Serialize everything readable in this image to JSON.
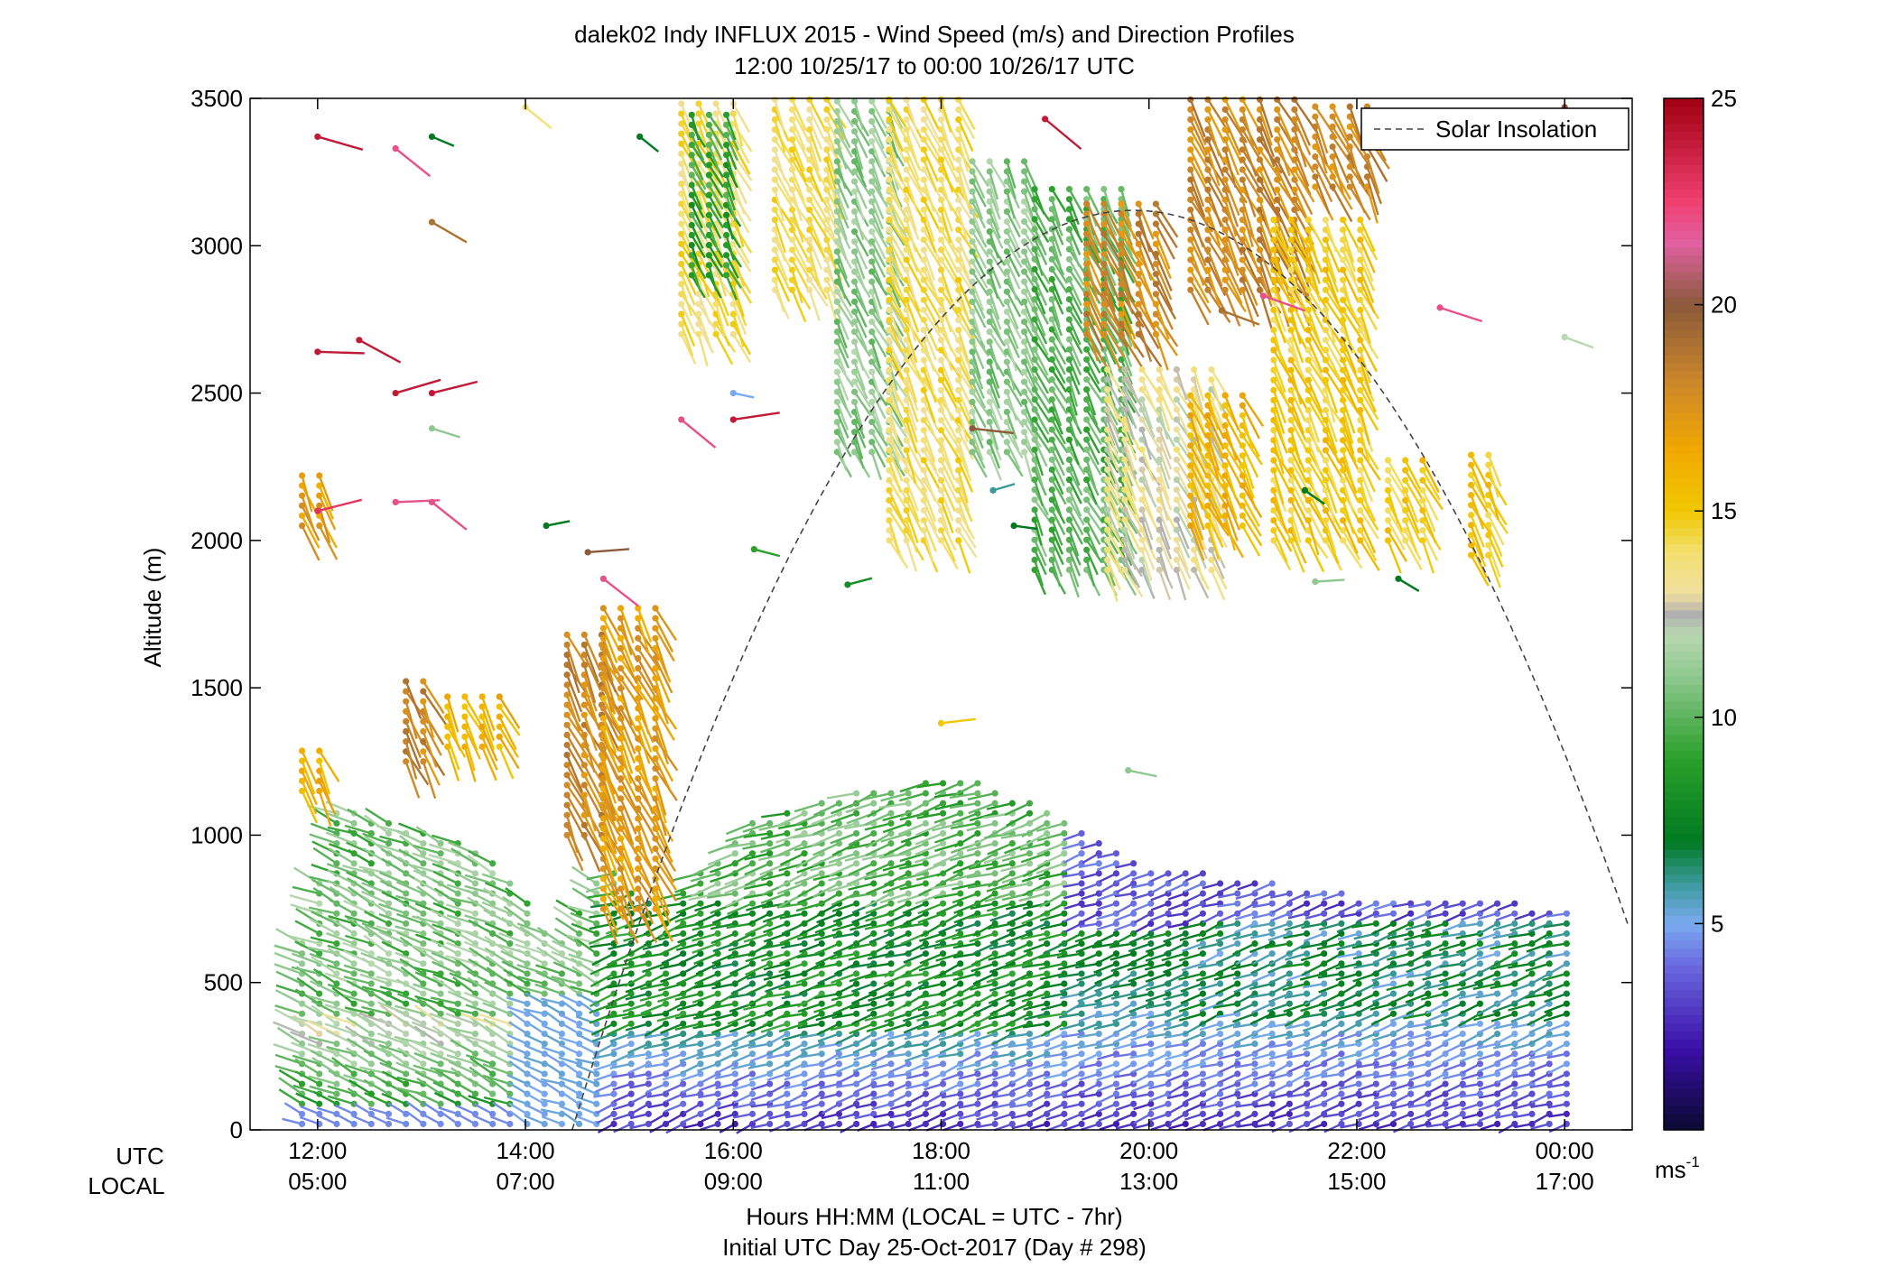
{
  "chart_data": {
    "type": "wind barb profile",
    "title": "dalek02 Indy INFLUX 2015 - Wind Speed (m/s) and Direction Profiles",
    "subtitle": "12:00 10/25/17 to 00:00 10/26/17  UTC",
    "ylabel": "Altitude (m)",
    "xlabel": "Hours HH:MM  (LOCAL = UTC - 7hr)",
    "xlabel2": "Initial UTC Day 25-Oct-2017 (Day # 298)",
    "row_label_utc": "UTC",
    "row_label_local": "LOCAL",
    "x_range_hours_utc": [
      11.35,
      24.65
    ],
    "ylim": [
      0,
      3500
    ],
    "y_ticks": [
      0,
      500,
      1000,
      1500,
      2000,
      2500,
      3000,
      3500
    ],
    "x_ticks": [
      {
        "h": 12,
        "utc": "12:00",
        "local": "05:00"
      },
      {
        "h": 14,
        "utc": "14:00",
        "local": "07:00"
      },
      {
        "h": 16,
        "utc": "16:00",
        "local": "09:00"
      },
      {
        "h": 18,
        "utc": "18:00",
        "local": "11:00"
      },
      {
        "h": 20,
        "utc": "20:00",
        "local": "13:00"
      },
      {
        "h": 22,
        "utc": "22:00",
        "local": "15:00"
      },
      {
        "h": 24,
        "utc": "00:00",
        "local": "17:00"
      }
    ],
    "legend": {
      "label": "Solar Insolation",
      "placement": "top-right",
      "style": "dashed gray"
    },
    "solar_insolation_curve": {
      "start_h": 14.45,
      "peak_h": 19.85,
      "peak_alt_m": 3120,
      "end_h": 24.62,
      "end_alt_m": 650
    },
    "colorbar": {
      "ticks": [
        5,
        10,
        15,
        20,
        25
      ],
      "range": [
        0,
        25
      ],
      "unit": "ms",
      "unit_exp": "-1",
      "stops": [
        {
          "v": 0,
          "c": "#0a0a30"
        },
        {
          "v": 2,
          "c": "#3a0fa8"
        },
        {
          "v": 4,
          "c": "#6a6ae0"
        },
        {
          "v": 5,
          "c": "#7aaaf0"
        },
        {
          "v": 6,
          "c": "#3a9a9a"
        },
        {
          "v": 7,
          "c": "#007a20"
        },
        {
          "v": 9,
          "c": "#2aa02a"
        },
        {
          "v": 11,
          "c": "#8ec88e"
        },
        {
          "v": 12,
          "c": "#b8d8b0"
        },
        {
          "v": 12.5,
          "c": "#b0b0b0"
        },
        {
          "v": 13,
          "c": "#f0e0a0"
        },
        {
          "v": 14,
          "c": "#f2e070"
        },
        {
          "v": 15,
          "c": "#f0c800"
        },
        {
          "v": 16.5,
          "c": "#f0a800"
        },
        {
          "v": 18,
          "c": "#d08a28"
        },
        {
          "v": 20,
          "c": "#8a5a3a"
        },
        {
          "v": 21.5,
          "c": "#e060a0"
        },
        {
          "v": 22.5,
          "c": "#f04070"
        },
        {
          "v": 25,
          "c": "#a00010"
        }
      ]
    },
    "low_level_profile_top_m": [
      {
        "h": 11.85,
        "top": 640
      },
      {
        "h": 12.2,
        "top": 1100
      },
      {
        "h": 12.6,
        "top": 1050
      },
      {
        "h": 13.2,
        "top": 1000
      },
      {
        "h": 13.8,
        "top": 900
      },
      {
        "h": 14.3,
        "top": 600
      },
      {
        "h": 14.75,
        "top": 900
      },
      {
        "h": 15.3,
        "top": 750
      },
      {
        "h": 16.2,
        "top": 1050
      },
      {
        "h": 17.2,
        "top": 1150
      },
      {
        "h": 18.2,
        "top": 1200
      },
      {
        "h": 19.0,
        "top": 1100
      },
      {
        "h": 20.0,
        "top": 900
      },
      {
        "h": 21.0,
        "top": 850
      },
      {
        "h": 22.0,
        "top": 800
      },
      {
        "h": 23.0,
        "top": 800
      },
      {
        "h": 24.0,
        "top": 750
      }
    ],
    "upper_wind_regions": [
      {
        "h0": 11.85,
        "h1": 12.05,
        "alt0": 2050,
        "alt1": 2250,
        "speed": 17
      },
      {
        "h0": 11.85,
        "h1": 12.05,
        "alt0": 1150,
        "alt1": 1300,
        "speed": 16
      },
      {
        "h0": 12.85,
        "h1": 13.05,
        "alt0": 1250,
        "alt1": 1550,
        "speed": 18
      },
      {
        "h0": 13.25,
        "h1": 13.75,
        "alt0": 1300,
        "alt1": 1500,
        "speed": 16
      },
      {
        "h0": 14.4,
        "h1": 14.75,
        "alt0": 1000,
        "alt1": 1700,
        "speed": 18
      },
      {
        "h0": 14.75,
        "h1": 15.3,
        "alt0": 750,
        "alt1": 1800,
        "speed": 17
      },
      {
        "h0": 15.5,
        "h1": 16.1,
        "alt0": 2700,
        "alt1": 3500,
        "speed": 14
      },
      {
        "h0": 15.6,
        "h1": 16.0,
        "alt0": 2900,
        "alt1": 3450,
        "speed": 9
      },
      {
        "h0": 16.4,
        "h1": 17.0,
        "alt0": 2850,
        "alt1": 3500,
        "speed": 14
      },
      {
        "h0": 17.0,
        "h1": 17.5,
        "alt0": 2300,
        "alt1": 3500,
        "speed": 11
      },
      {
        "h0": 17.5,
        "h1": 18.3,
        "alt0": 2000,
        "alt1": 3500,
        "speed": 14
      },
      {
        "h0": 18.3,
        "h1": 18.9,
        "alt0": 2300,
        "alt1": 3300,
        "speed": 11
      },
      {
        "h0": 18.9,
        "h1": 19.8,
        "alt0": 1900,
        "alt1": 3200,
        "speed": 10
      },
      {
        "h0": 19.4,
        "h1": 20.2,
        "alt0": 2700,
        "alt1": 3150,
        "speed": 18
      },
      {
        "h0": 19.6,
        "h1": 20.6,
        "alt0": 1900,
        "alt1": 2600,
        "speed": 13
      },
      {
        "h0": 20.4,
        "h1": 21.0,
        "alt0": 2050,
        "alt1": 2500,
        "speed": 16
      },
      {
        "h0": 20.4,
        "h1": 21.4,
        "alt0": 2850,
        "alt1": 3500,
        "speed": 18
      },
      {
        "h0": 21.2,
        "h1": 22.1,
        "alt0": 2000,
        "alt1": 3100,
        "speed": 15
      },
      {
        "h0": 21.6,
        "h1": 22.2,
        "alt0": 3200,
        "alt1": 3500,
        "speed": 18
      },
      {
        "h0": 22.3,
        "h1": 22.7,
        "alt0": 2000,
        "alt1": 2300,
        "speed": 15
      },
      {
        "h0": 23.1,
        "h1": 23.4,
        "alt0": 1950,
        "alt1": 2300,
        "speed": 15
      }
    ]
  }
}
